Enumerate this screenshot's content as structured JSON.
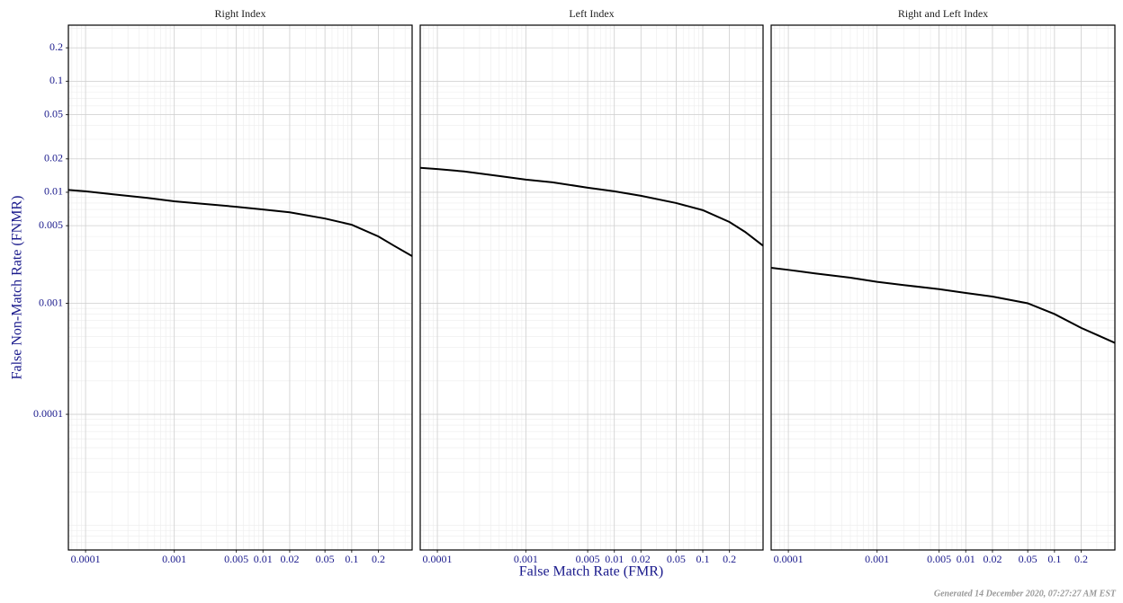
{
  "chart_data": [
    {
      "type": "line",
      "title": "Right Index",
      "xscale": "log",
      "yscale": "log",
      "grid": true,
      "xlim": [
        6.4e-05,
        0.48
      ],
      "ylim": [
        6e-06,
        0.32
      ],
      "xticks": [
        0.0001,
        0.001,
        0.005,
        0.01,
        0.02,
        0.05,
        0.1,
        0.2
      ],
      "yticks": [
        0.0001,
        0.001,
        0.005,
        0.01,
        0.02,
        0.05,
        0.1,
        0.2
      ],
      "x": [
        6.4e-05,
        0.0001,
        0.0002,
        0.0005,
        0.001,
        0.002,
        0.005,
        0.01,
        0.02,
        0.05,
        0.1,
        0.2,
        0.3,
        0.48
      ],
      "series": [
        {
          "color": "#000000",
          "values": [
            0.0105,
            0.0102,
            0.0096,
            0.0089,
            0.0083,
            0.0079,
            0.0074,
            0.007,
            0.0066,
            0.0058,
            0.0051,
            0.004,
            0.0033,
            0.00266
          ]
        }
      ]
    },
    {
      "type": "line",
      "title": "Left Index",
      "xscale": "log",
      "yscale": "log",
      "grid": true,
      "xlim": [
        6.4e-05,
        0.48
      ],
      "ylim": [
        6e-06,
        0.32
      ],
      "xticks": [
        0.0001,
        0.001,
        0.005,
        0.01,
        0.02,
        0.05,
        0.1,
        0.2
      ],
      "yticks": [
        0.0001,
        0.001,
        0.005,
        0.01,
        0.02,
        0.05,
        0.1,
        0.2
      ],
      "x": [
        6.4e-05,
        0.0001,
        0.0002,
        0.0005,
        0.001,
        0.002,
        0.005,
        0.01,
        0.02,
        0.05,
        0.1,
        0.2,
        0.3,
        0.48
      ],
      "series": [
        {
          "color": "#000000",
          "values": [
            0.0166,
            0.0162,
            0.0154,
            0.014,
            0.013,
            0.0123,
            0.011,
            0.0102,
            0.0093,
            0.008,
            0.0069,
            0.0054,
            0.0044,
            0.0033
          ]
        }
      ]
    },
    {
      "type": "line",
      "title": "Right and Left Index",
      "xscale": "log",
      "yscale": "log",
      "grid": true,
      "xlim": [
        6.4e-05,
        0.48
      ],
      "ylim": [
        6e-06,
        0.32
      ],
      "xticks": [
        0.0001,
        0.001,
        0.005,
        0.01,
        0.02,
        0.05,
        0.1,
        0.2
      ],
      "yticks": [
        0.0001,
        0.001,
        0.005,
        0.01,
        0.02,
        0.05,
        0.1,
        0.2
      ],
      "x": [
        6.4e-05,
        0.0001,
        0.0002,
        0.0005,
        0.001,
        0.002,
        0.005,
        0.01,
        0.02,
        0.05,
        0.1,
        0.2,
        0.3,
        0.48
      ],
      "series": [
        {
          "color": "#000000",
          "values": [
            0.00209,
            0.002,
            0.00186,
            0.0017,
            0.00156,
            0.00146,
            0.00134,
            0.00124,
            0.00115,
            0.001,
            0.0008,
            0.0006,
            0.00052,
            0.00044
          ]
        }
      ]
    }
  ],
  "xlabel": "False Match Rate (FMR)",
  "ylabel": "False Non-Match Rate (FNMR)",
  "footer": "Generated 14 December 2020, 07:27:27 AM EST"
}
